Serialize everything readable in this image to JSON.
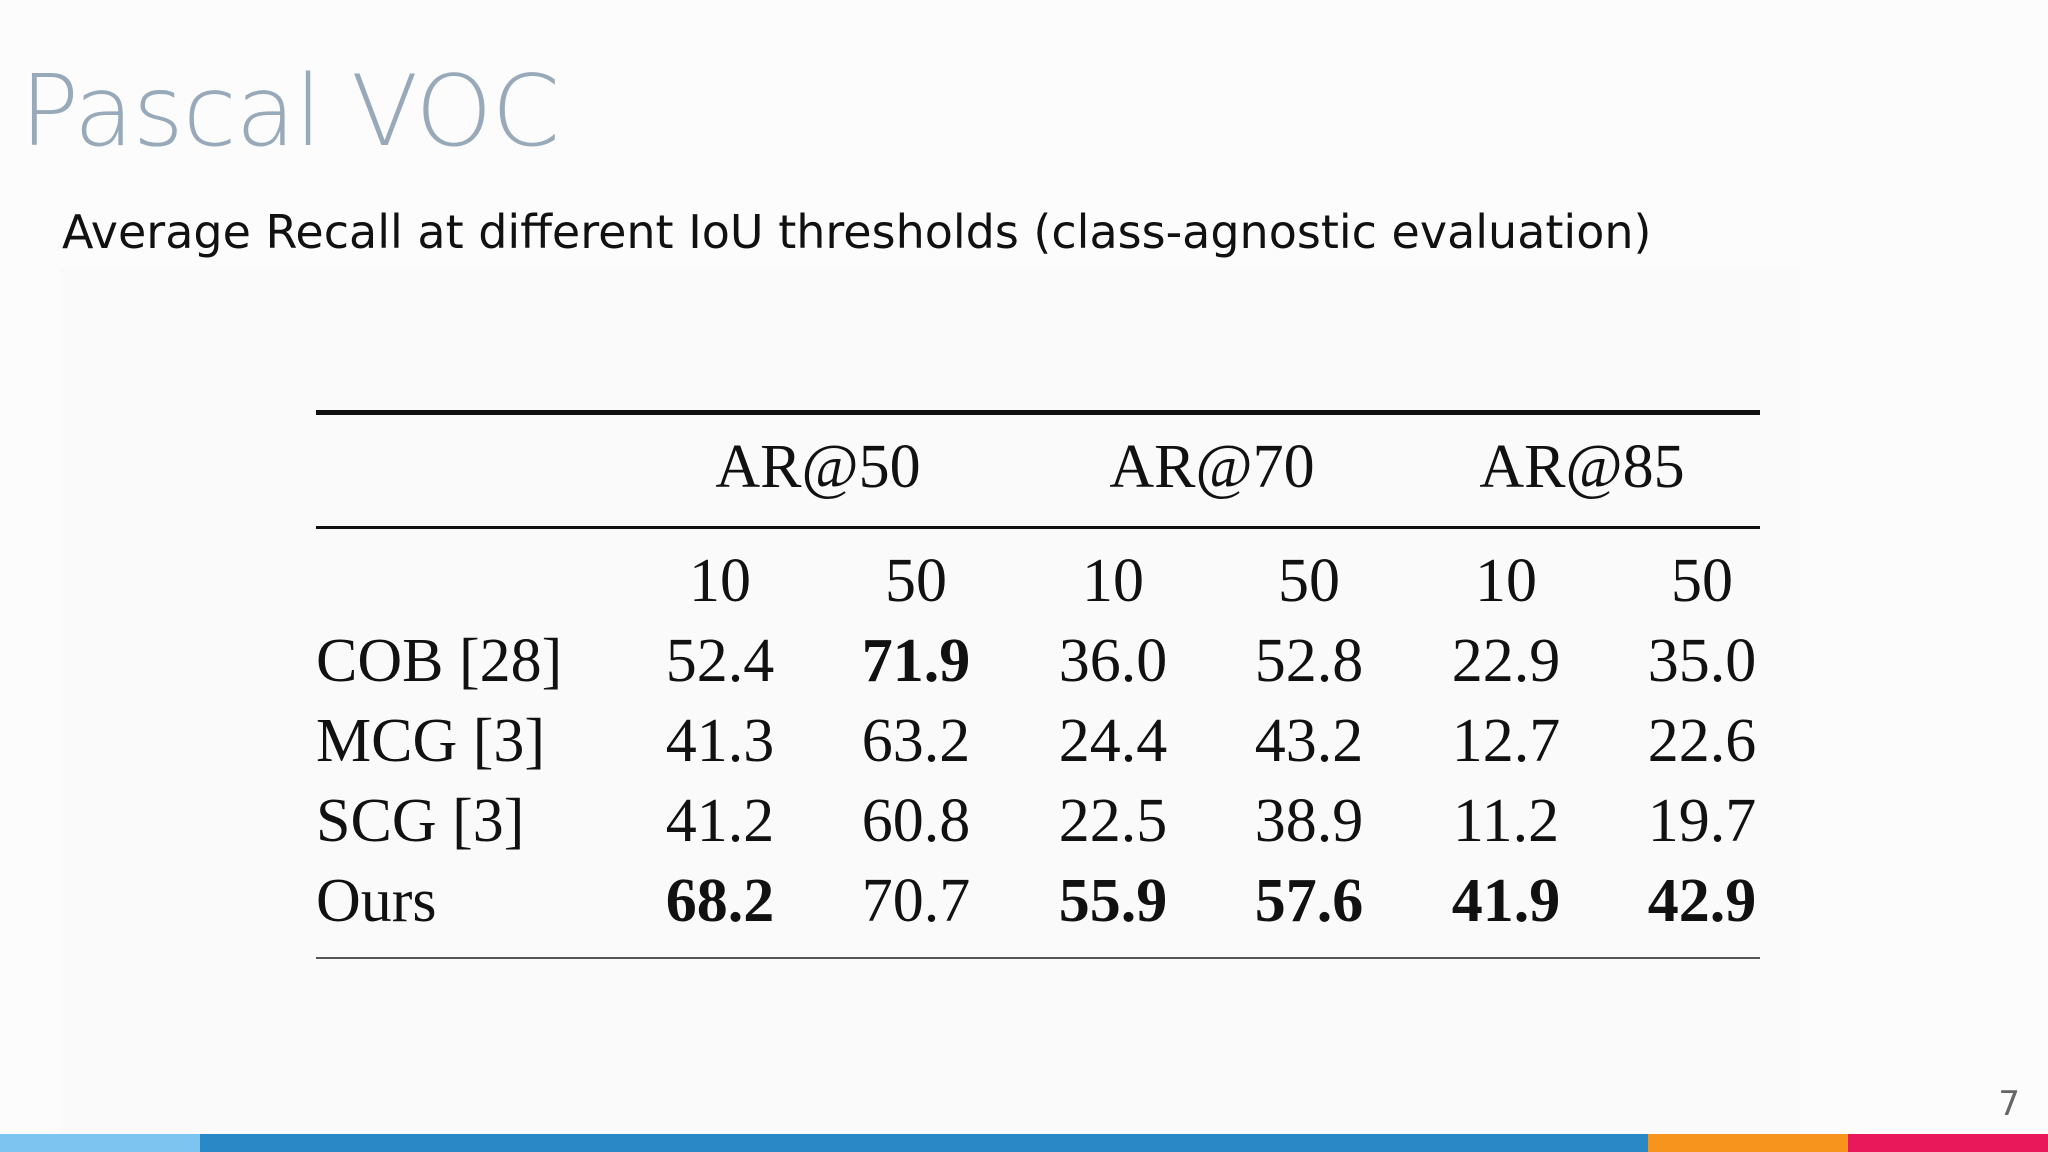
{
  "slide": {
    "title": "Pascal VOC",
    "subtitle": "Average Recall at different IoU thresholds (class-agnostic evaluation)",
    "page_number": "7"
  },
  "table": {
    "group_headers": [
      "AR@50",
      "AR@70",
      "AR@85"
    ],
    "sub_headers": [
      "10",
      "50",
      "10",
      "50",
      "10",
      "50"
    ],
    "rows": [
      {
        "label": "COB [28]",
        "values": [
          "52.4",
          "71.9",
          "36.0",
          "52.8",
          "22.9",
          "35.0"
        ],
        "bold": [
          false,
          true,
          false,
          false,
          false,
          false
        ]
      },
      {
        "label": "MCG [3]",
        "values": [
          "41.3",
          "63.2",
          "24.4",
          "43.2",
          "12.7",
          "22.6"
        ],
        "bold": [
          false,
          false,
          false,
          false,
          false,
          false
        ]
      },
      {
        "label": "SCG [3]",
        "values": [
          "41.2",
          "60.8",
          "22.5",
          "38.9",
          "11.2",
          "19.7"
        ],
        "bold": [
          false,
          false,
          false,
          false,
          false,
          false
        ]
      },
      {
        "label": "Ours",
        "values": [
          "68.2",
          "70.7",
          "55.9",
          "57.6",
          "41.9",
          "42.9"
        ],
        "bold": [
          true,
          false,
          true,
          true,
          true,
          true
        ]
      }
    ]
  },
  "colors": {
    "title": "#98aab9",
    "footer": [
      "#7ec4f0",
      "#2a88c6",
      "#f7941d",
      "#e8185a"
    ]
  }
}
